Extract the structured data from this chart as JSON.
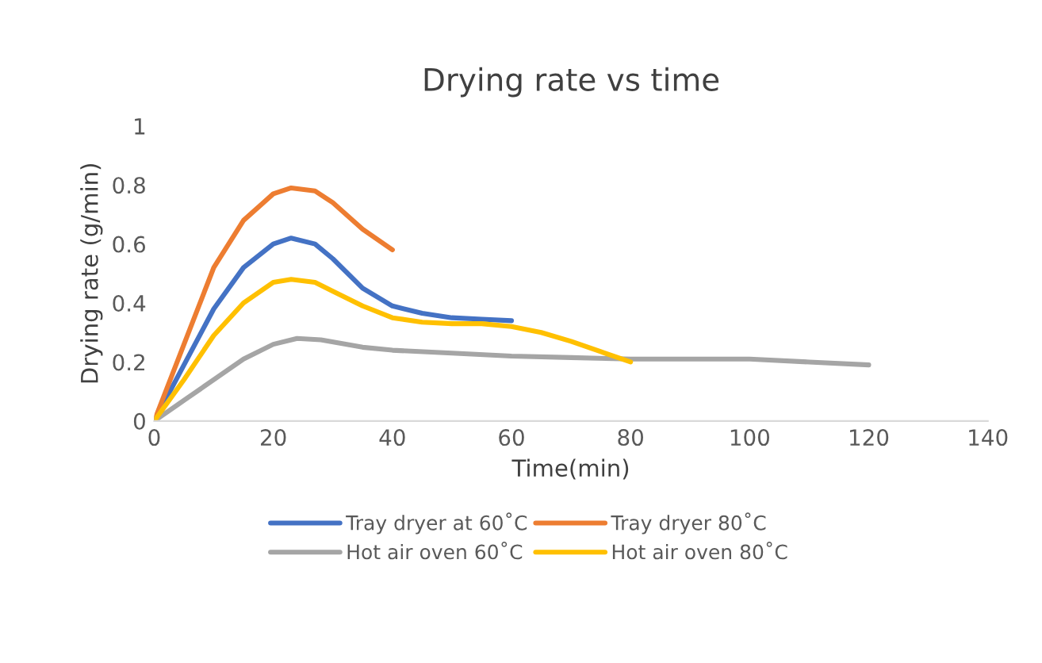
{
  "chart_data": {
    "type": "line",
    "title": "Drying rate vs time",
    "xlabel": "Time(min)",
    "ylabel": "Drying rate (g/min)",
    "xlim": [
      0,
      140
    ],
    "xticks": [
      0,
      20,
      40,
      60,
      80,
      100,
      120,
      140
    ],
    "ylim": [
      0,
      1
    ],
    "yticks": [
      0,
      0.2,
      0.4,
      0.6,
      0.8,
      1
    ],
    "grid": false,
    "legend": "bottom",
    "marker": "none",
    "line_style": "solid",
    "series": [
      {
        "name": "Tray dryer at 60˚C",
        "color": "#4472c4",
        "x": [
          0,
          5,
          10,
          15,
          20,
          23,
          27,
          30,
          35,
          40,
          45,
          50,
          55,
          60
        ],
        "values": [
          0,
          0.19,
          0.38,
          0.52,
          0.6,
          0.62,
          0.6,
          0.55,
          0.45,
          0.39,
          0.365,
          0.35,
          0.345,
          0.34
        ]
      },
      {
        "name": "Tray dryer 80˚C",
        "color": "#ed7d31",
        "x": [
          0,
          5,
          10,
          15,
          20,
          23,
          27,
          30,
          35,
          40
        ],
        "values": [
          0,
          0.26,
          0.52,
          0.68,
          0.77,
          0.79,
          0.78,
          0.74,
          0.65,
          0.58
        ]
      },
      {
        "name": "Hot air oven 60˚C",
        "color": "#a5a5a5",
        "x": [
          0,
          5,
          10,
          15,
          20,
          24,
          28,
          35,
          40,
          50,
          60,
          70,
          80,
          90,
          100,
          110,
          120
        ],
        "values": [
          0,
          0.07,
          0.14,
          0.21,
          0.26,
          0.28,
          0.275,
          0.25,
          0.24,
          0.23,
          0.22,
          0.215,
          0.21,
          0.21,
          0.21,
          0.2,
          0.19
        ]
      },
      {
        "name": "Hot air oven 80˚C",
        "color": "#ffc000",
        "x": [
          0,
          5,
          10,
          15,
          20,
          23,
          27,
          30,
          35,
          40,
          45,
          50,
          55,
          60,
          65,
          70,
          75,
          80
        ],
        "values": [
          0,
          0.14,
          0.29,
          0.4,
          0.47,
          0.48,
          0.47,
          0.44,
          0.39,
          0.35,
          0.335,
          0.33,
          0.33,
          0.32,
          0.3,
          0.27,
          0.235,
          0.2
        ]
      }
    ]
  }
}
